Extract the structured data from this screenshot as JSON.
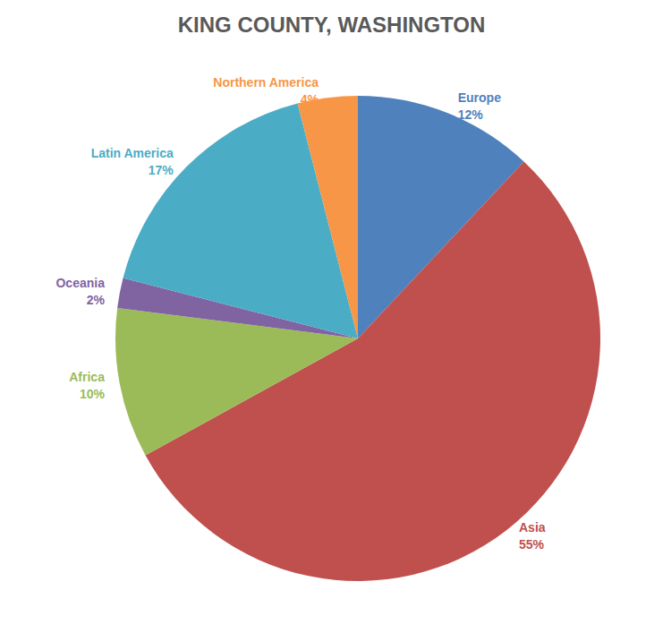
{
  "chart_data": {
    "type": "pie",
    "title": "KING COUNTY, WASHINGTON",
    "categories": [
      "Europe",
      "Asia",
      "Africa",
      "Oceania",
      "Latin America",
      "Northern America"
    ],
    "values": [
      12,
      55,
      10,
      2,
      17,
      4
    ],
    "value_labels": [
      "12%",
      "55%",
      "10%",
      "2%",
      "17%",
      "4%"
    ],
    "colors": [
      "#4f81bd",
      "#c0504d",
      "#9bbb59",
      "#8064a2",
      "#4bacc6",
      "#f79646"
    ],
    "data_labels": true
  }
}
